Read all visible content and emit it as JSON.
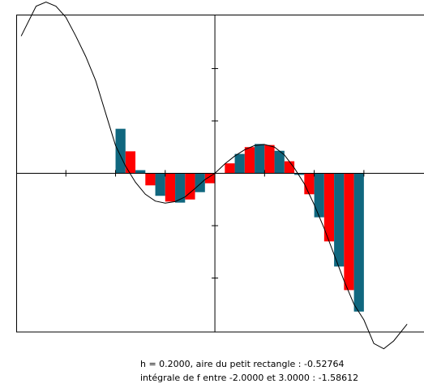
{
  "chart_data": {
    "type": "bar",
    "xlim": [
      -4.0,
      4.21
    ],
    "ylim": [
      -3.03,
      3.03
    ],
    "xticks": [
      -3,
      -2,
      -1,
      1,
      2,
      3
    ],
    "yticks": [
      -2,
      -1,
      1,
      2
    ],
    "x": [
      -2.0,
      -1.8,
      -1.6,
      -1.4,
      -1.2,
      -1.0,
      -0.8,
      -0.6,
      -0.4,
      -0.2,
      0.0,
      0.2,
      0.4,
      0.6,
      0.8,
      1.0,
      1.2,
      1.4,
      1.6,
      1.8,
      2.0,
      2.2,
      2.4,
      2.6,
      2.8
    ],
    "values": [
      0.85,
      0.42,
      0.06,
      -0.23,
      -0.43,
      -0.54,
      -0.56,
      -0.5,
      -0.36,
      -0.19,
      0.0,
      0.19,
      0.37,
      0.5,
      0.56,
      0.54,
      0.43,
      0.23,
      -0.03,
      -0.4,
      -0.84,
      -1.3,
      -1.78,
      -2.23,
      -2.64
    ],
    "colors": [
      "#10677f",
      "#ff0000"
    ],
    "curve": {
      "color": "#000000",
      "x": [
        -3.9,
        -3.6,
        -3.4,
        -3.2,
        -3.0,
        -2.8,
        -2.6,
        -2.4,
        -2.2,
        -2.0,
        -1.8,
        -1.6,
        -1.4,
        -1.2,
        -1.0,
        -0.8,
        -0.6,
        -0.4,
        -0.2,
        0.0,
        0.2,
        0.4,
        0.6,
        0.8,
        1.0,
        1.2,
        1.4,
        1.6,
        1.8,
        2.0,
        2.2,
        2.4,
        2.6,
        2.8,
        3.0,
        3.2,
        3.4,
        3.6,
        3.87
      ],
      "y": [
        2.62,
        3.19,
        3.27,
        3.19,
        2.98,
        2.62,
        2.23,
        1.77,
        1.15,
        0.53,
        0.14,
        -0.17,
        -0.4,
        -0.53,
        -0.57,
        -0.54,
        -0.45,
        -0.29,
        -0.12,
        0.0,
        0.18,
        0.33,
        0.45,
        0.53,
        0.55,
        0.5,
        0.35,
        0.1,
        -0.2,
        -0.6,
        -1.05,
        -1.55,
        -2.05,
        -2.5,
        -2.8,
        -3.25,
        -3.35,
        -3.2,
        -2.88
      ]
    },
    "annotations": [
      "h = 0.2000, aire du petit rectangle : -0.52764",
      "intégrale de f entre -2.0000 et 3.0000 : -1.58612"
    ]
  }
}
